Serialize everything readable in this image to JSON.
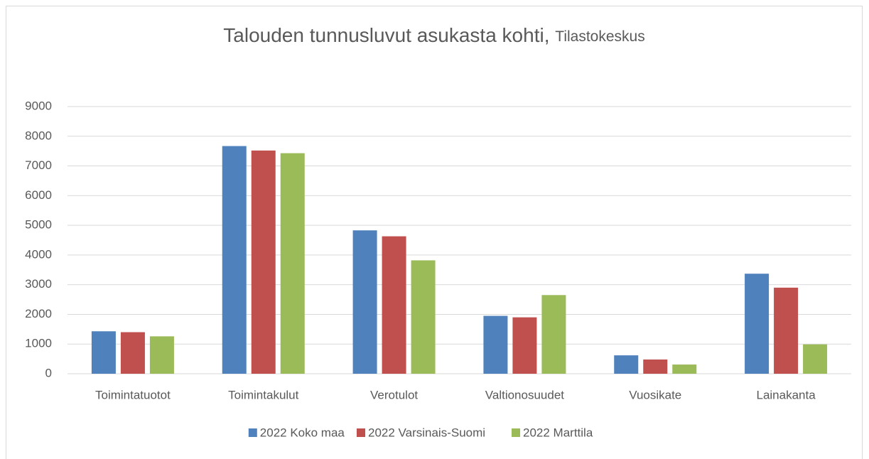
{
  "chart_data": {
    "type": "bar",
    "title": "Talouden tunnusluvut asukasta kohti,",
    "subtitle": "Tilastokeskus",
    "categories": [
      "Toimintatuotot",
      "Toimintakulut",
      "Verotulot",
      "Valtionosuudet",
      "Vuosikate",
      "Lainakanta"
    ],
    "series": [
      {
        "name": "2022 Koko maa",
        "color": "#4f81bd",
        "values": [
          1430,
          7670,
          4830,
          1950,
          620,
          3370
        ]
      },
      {
        "name": "2022 Varsinais-Suomi",
        "color": "#c0504d",
        "values": [
          1400,
          7520,
          4630,
          1900,
          480,
          2900
        ]
      },
      {
        "name": "2022 Marttila",
        "color": "#9bbb59",
        "values": [
          1260,
          7430,
          3820,
          2650,
          310,
          990
        ]
      }
    ],
    "ylim": [
      0,
      9000
    ],
    "yticks": [
      0,
      1000,
      2000,
      3000,
      4000,
      5000,
      6000,
      7000,
      8000,
      9000
    ],
    "grid": true,
    "legend": "bottom"
  }
}
